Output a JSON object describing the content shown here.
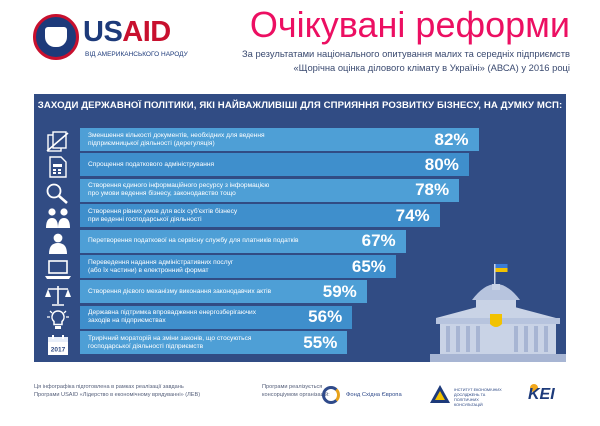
{
  "header": {
    "logo_word_1": "US",
    "logo_word_2": "AID",
    "logo_tagline": "ВІД АМЕРИКАНСЬКОГО НАРОДУ",
    "title": "Очікувані реформи",
    "subtitle_line1": "За результатами національного опитування малих та середніх підприємств",
    "subtitle_line2": "«Щорічна оцінка ділового клімату в Україні» (АВСА) у 2016 році"
  },
  "panel": {
    "heading": "ЗАХОДИ ДЕРЖАВНОЇ ПОЛІТИКИ, ЯКІ НАЙВАЖЛИВІШІ ДЛЯ СПРИЯННЯ РОЗВИТКУ БІЗНЕСУ, НА ДУМКУ МСП:"
  },
  "chart_data": {
    "type": "bar",
    "orientation": "horizontal",
    "title": "ЗАХОДИ ДЕРЖАВНОЇ ПОЛІТИКИ, ЯКІ НАЙВАЖЛИВІШІ ДЛЯ СПРИЯННЯ РОЗВИТКУ БІЗНЕСУ, НА ДУМКУ МСП:",
    "unit": "%",
    "xlim": [
      0,
      100
    ],
    "grid": false,
    "value_labels": [
      "82%",
      "80%",
      "78%",
      "74%",
      "67%",
      "65%",
      "59%",
      "56%",
      "55%"
    ],
    "categories": [
      [
        "Зменшення кількості документів, необхідних для ведення",
        "підприємницької діяльності (дерегуляція)"
      ],
      [
        "Спрощення податкового адміністрування"
      ],
      [
        "Створення єдиного інформаційного ресурсу з інформацією",
        "про умови ведення бізнесу, законодавство тощо"
      ],
      [
        "Створення рівних умов для всіх суб'єктів бізнесу",
        "при веденні господарської діяльності"
      ],
      [
        "Перетворення податкової на сервісну службу для платників податків"
      ],
      [
        "Переведення надання адміністративних послуг",
        "(або їх частини) в електронний формат"
      ],
      [
        "Створення дієвого механізму виконання законодавчих актів"
      ],
      [
        "Державна підтримка впровадження енергозберігаючих",
        "заходів на підприємствах"
      ],
      [
        "Трирічний мораторій на зміни законів, що стосуються",
        "господарської діяльності підприємств"
      ]
    ],
    "values": [
      82,
      80,
      78,
      74,
      67,
      65,
      59,
      56,
      55
    ]
  },
  "icons": [
    "documents-icon",
    "calculator-icon",
    "magnifier-icon",
    "people-icon",
    "person-icon",
    "laptop-icon",
    "scales-icon",
    "lightbulb-icon",
    "calendar-icon"
  ],
  "icon_labels": {
    "calendar_year": "2017"
  },
  "colors": {
    "title": "#ec0f62",
    "panel": "#314c84",
    "bar": "#4e9fd6",
    "bar_alt": "#3f8fcc",
    "usaid_blue": "#1d3a7a",
    "usaid_red": "#c8102e"
  },
  "footer": {
    "left_line1": "Ця інфографіка підготовлена в рамках реалізації завдань",
    "left_line2": "Програми USAID «Лідерство в економічному врядуванні» (ЛЕВ)",
    "middle_line1": "Програми реалізується",
    "middle_line2": "консорціумом організацій:",
    "fund_name": "Фонд Східна Європа",
    "institute_name": "ІНСТИТУТ ЕКОНОМІЧНИХ ДОСЛІДЖЕНЬ ТА ПОЛІТИЧНИХ КОНСУЛЬТАЦІЙ",
    "kei_name": "KEI"
  }
}
